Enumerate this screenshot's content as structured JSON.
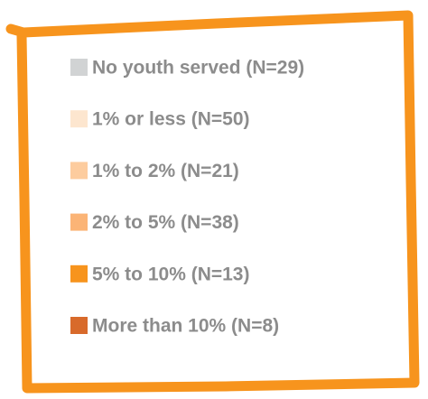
{
  "legend": {
    "items": [
      {
        "label": "No youth served (N=29)",
        "color": "#d1d3d4"
      },
      {
        "label": "1% or less (N=50)",
        "color": "#fde6cf"
      },
      {
        "label": "1% to 2% (N=21)",
        "color": "#fdcc9e"
      },
      {
        "label": "2% to 5% (N=38)",
        "color": "#fbb476"
      },
      {
        "label": "5% to 10% (N=13)",
        "color": "#f7941d"
      },
      {
        "label": "More than 10% (N=8)",
        "color": "#d86a2b"
      }
    ]
  }
}
